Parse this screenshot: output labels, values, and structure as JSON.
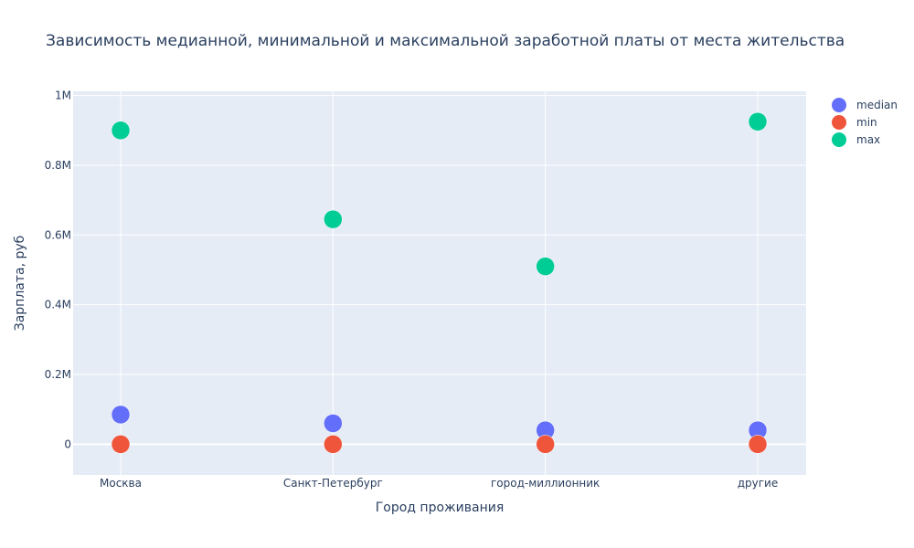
{
  "chart_data": {
    "type": "scatter",
    "title": "Зависимость медианной, минимальной и максимальной заработной платы от места жительства",
    "xlabel": "Город проживания",
    "ylabel": "Зарплата, руб",
    "categories": [
      "Москва",
      "Санкт-Петербург",
      "город-миллионник",
      "другие"
    ],
    "series": [
      {
        "name": "median",
        "color": "#636efa",
        "values": [
          85000,
          60000,
          40000,
          40000
        ]
      },
      {
        "name": "min",
        "color": "#ef553b",
        "values": [
          0,
          0,
          0,
          0
        ]
      },
      {
        "name": "max",
        "color": "#00cc96",
        "values": [
          900000,
          645000,
          510000,
          925000
        ]
      }
    ],
    "y_ticks": [
      {
        "value": 0,
        "label": "0"
      },
      {
        "value": 200000,
        "label": "0.2M"
      },
      {
        "value": 400000,
        "label": "0.4M"
      },
      {
        "value": 600000,
        "label": "0.6M"
      },
      {
        "value": 800000,
        "label": "0.8M"
      },
      {
        "value": 1000000,
        "label": "1M"
      }
    ],
    "ylim": [
      -88000,
      1012000
    ],
    "grid": true,
    "legend_position": "top-right",
    "plot_background": "#e5ecf6"
  }
}
